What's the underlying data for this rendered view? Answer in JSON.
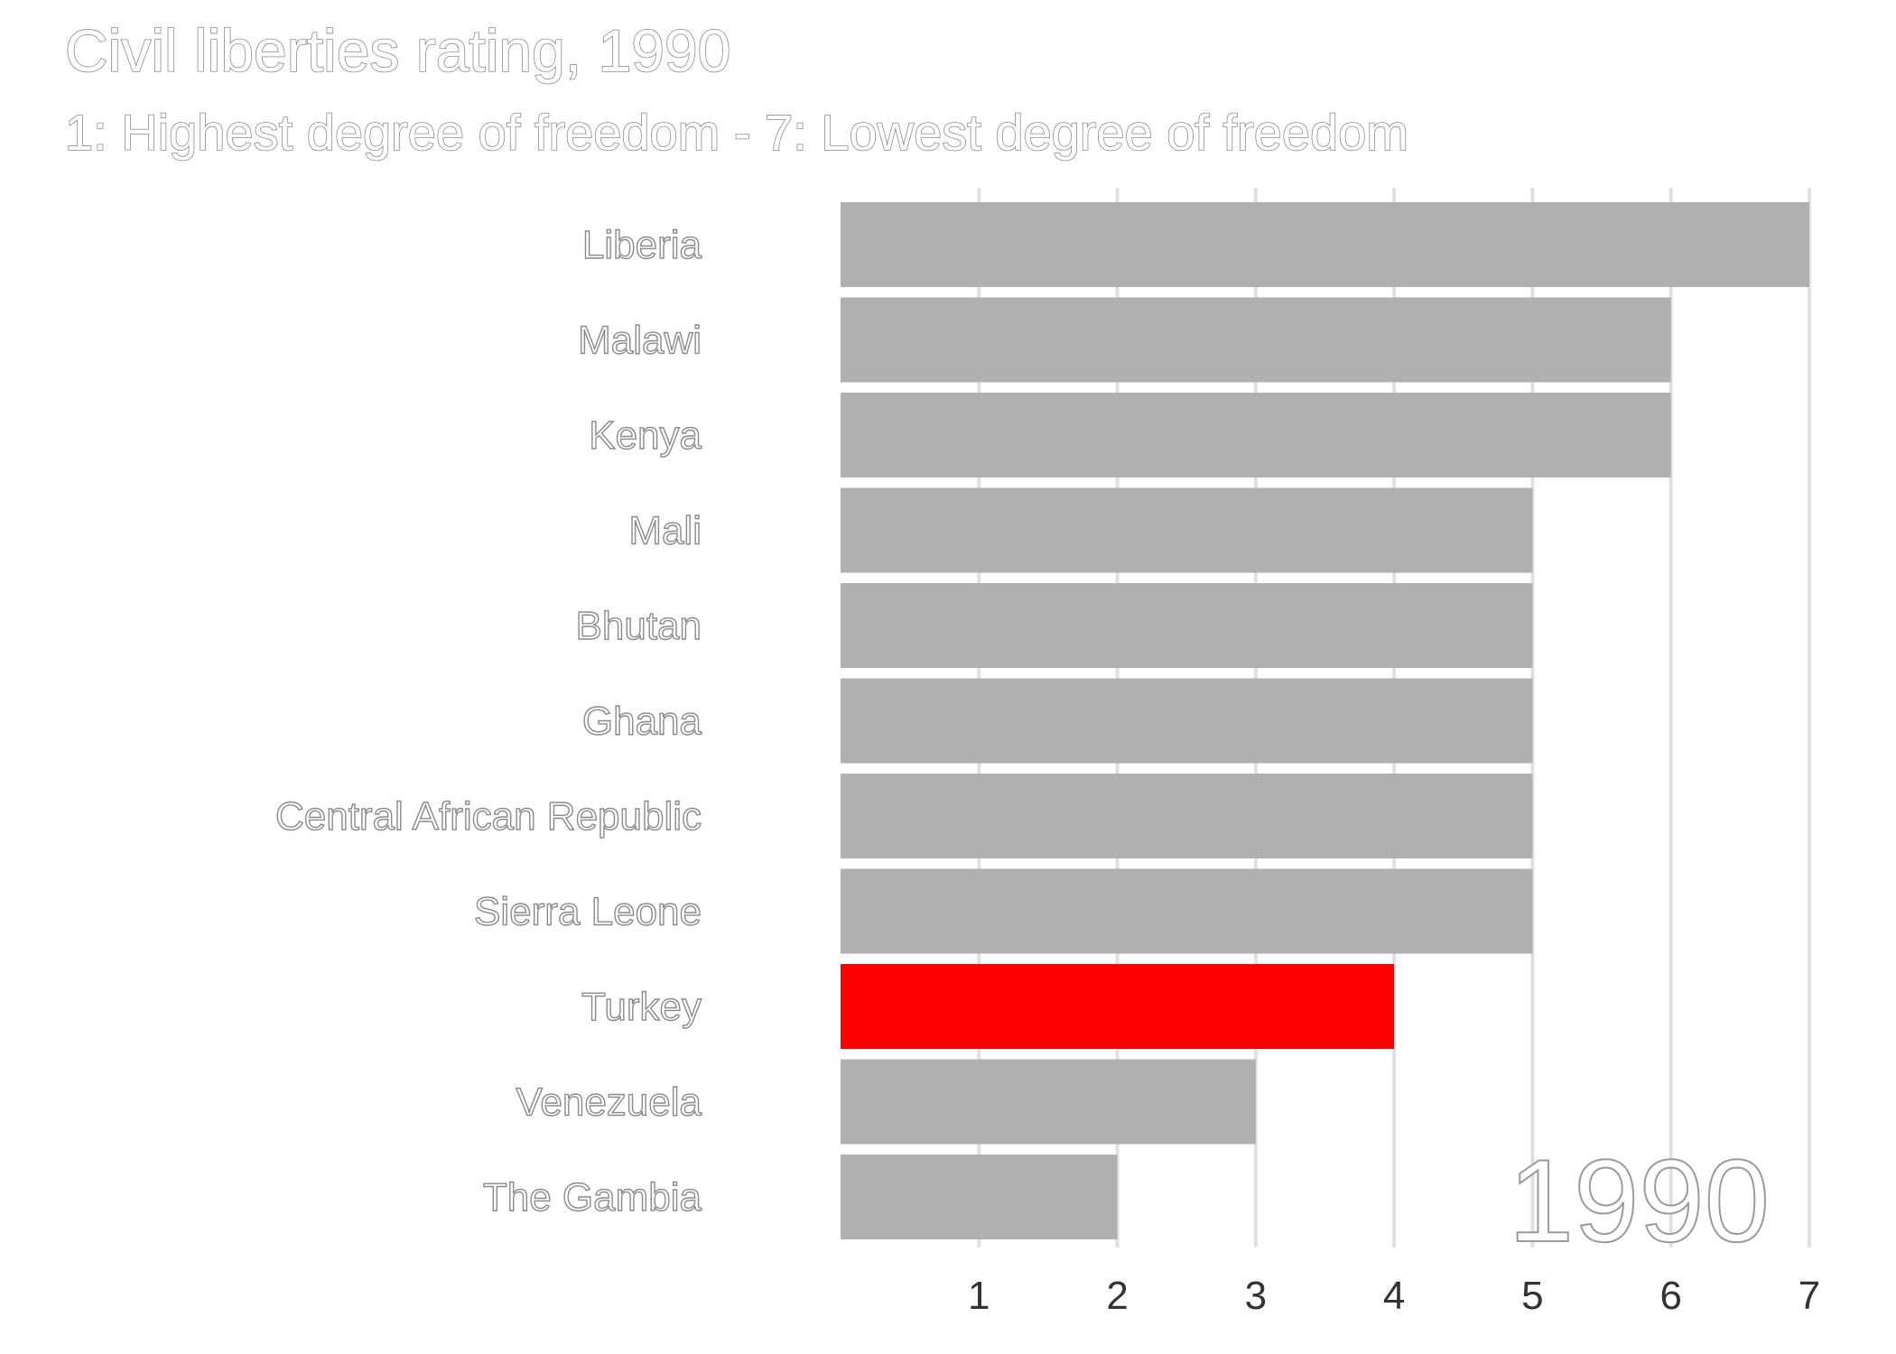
{
  "chart_data": {
    "type": "bar",
    "orientation": "horizontal",
    "title": "Civil liberties rating, 1990",
    "subtitle": "1: Highest degree of freedom - 7: Lowest degree of freedom",
    "categories": [
      "Liberia",
      "Malawi",
      "Kenya",
      "Mali",
      "Bhutan",
      "Ghana",
      "Central African Republic",
      "Sierra Leone",
      "Turkey",
      "Venezuela",
      "The Gambia"
    ],
    "values": [
      7,
      6,
      6,
      5,
      5,
      5,
      5,
      5,
      4,
      3,
      2
    ],
    "highlight": "Turkey",
    "xticks": [
      1,
      2,
      3,
      4,
      5,
      6,
      7
    ],
    "xlim": [
      0,
      7
    ],
    "grid": "vertical",
    "year_label": "1990",
    "colors": {
      "bar": "#b0b0b0",
      "highlight": "#ff0000",
      "grid": "#e0e0e0",
      "tick": "#333333"
    }
  }
}
